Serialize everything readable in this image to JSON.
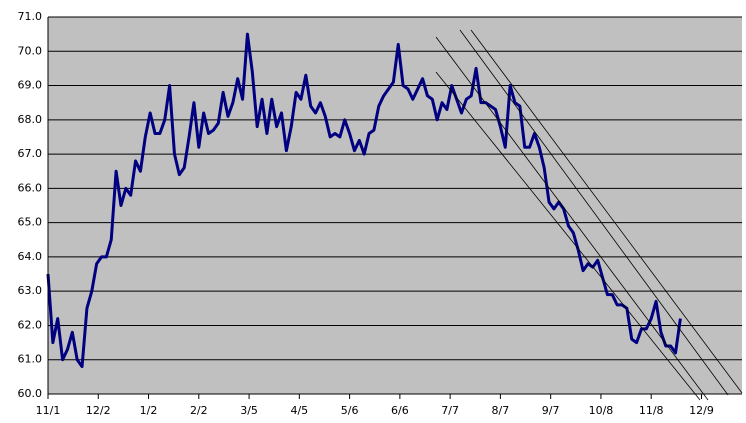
{
  "chart_data": {
    "type": "line",
    "x": [
      0,
      3,
      6,
      9,
      12,
      15,
      18,
      21,
      24,
      27,
      30,
      33,
      36,
      39,
      42,
      45,
      48,
      51,
      54,
      57,
      60,
      63,
      66,
      69,
      72,
      75,
      78,
      81,
      84,
      87,
      90,
      93,
      96,
      99,
      102,
      105,
      108,
      111,
      114,
      117,
      120,
      123,
      126,
      129,
      132,
      135,
      138,
      141,
      144,
      147,
      150,
      153,
      156,
      159,
      162,
      165,
      168,
      171,
      174,
      177,
      180,
      183,
      186,
      189,
      192,
      195,
      198,
      201,
      204,
      207,
      210,
      213,
      216,
      219,
      222,
      225,
      228,
      231,
      234,
      237,
      240,
      243,
      246,
      249,
      252,
      255,
      258,
      261,
      264,
      267,
      270,
      273,
      276,
      279,
      282,
      285,
      288,
      291,
      294,
      297,
      300,
      303,
      306,
      309,
      312,
      315,
      318,
      321,
      324,
      327,
      330,
      333,
      336,
      339,
      342,
      345,
      348,
      351,
      354,
      357,
      360,
      363,
      366,
      369,
      372,
      375,
      378,
      381,
      384,
      387,
      390
    ],
    "series": [
      {
        "color": "#000080",
        "values": [
          63.5,
          61.5,
          62.2,
          61.0,
          61.3,
          61.8,
          61.0,
          60.8,
          62.5,
          63.0,
          63.8,
          64.0,
          64.0,
          64.5,
          66.5,
          65.5,
          66.0,
          65.8,
          66.8,
          66.5,
          67.5,
          68.2,
          67.6,
          67.6,
          68.0,
          69.0,
          67.0,
          66.4,
          66.6,
          67.5,
          68.5,
          67.2,
          68.2,
          67.6,
          67.7,
          67.9,
          68.8,
          68.1,
          68.5,
          69.2,
          68.6,
          70.5,
          69.4,
          67.8,
          68.6,
          67.6,
          68.6,
          67.8,
          68.2,
          67.1,
          67.8,
          68.8,
          68.6,
          69.3,
          68.4,
          68.2,
          68.5,
          68.1,
          67.5,
          67.6,
          67.5,
          68.0,
          67.6,
          67.1,
          67.4,
          67.0,
          67.6,
          67.7,
          68.4,
          68.7,
          68.9,
          69.1,
          70.2,
          69.0,
          68.9,
          68.6,
          68.9,
          69.2,
          68.7,
          68.6,
          68.0,
          68.5,
          68.3,
          69.0,
          68.6,
          68.2,
          68.6,
          68.7,
          69.5,
          68.5,
          68.5,
          68.4,
          68.3,
          67.8,
          67.2,
          69.0,
          68.5,
          68.4,
          67.2,
          67.2,
          67.6,
          67.2,
          66.6,
          65.6,
          65.4,
          65.6,
          65.4,
          64.9,
          64.7,
          64.2,
          63.6,
          63.8,
          63.7,
          63.9,
          63.4,
          62.9,
          62.9,
          62.6,
          62.6,
          62.5,
          61.6,
          61.5,
          61.9,
          61.9,
          62.2,
          62.7,
          61.8,
          61.4,
          61.4,
          61.2,
          62.2
        ]
      }
    ],
    "xlim": [
      0,
      428
    ],
    "xticks": [
      {
        "value": 0,
        "label": "11/1"
      },
      {
        "value": 31,
        "label": "12/2"
      },
      {
        "value": 62,
        "label": "1/2"
      },
      {
        "value": 93,
        "label": "2/2"
      },
      {
        "value": 124,
        "label": "3/5"
      },
      {
        "value": 155,
        "label": "4/5"
      },
      {
        "value": 186,
        "label": "5/6"
      },
      {
        "value": 217,
        "label": "6/6"
      },
      {
        "value": 248,
        "label": "7/7"
      },
      {
        "value": 279,
        "label": "8/7"
      },
      {
        "value": 310,
        "label": "9/7"
      },
      {
        "value": 341,
        "label": "10/8"
      },
      {
        "value": 372,
        "label": "11/8"
      },
      {
        "value": 403,
        "label": "12/9"
      }
    ],
    "ylim": [
      60,
      71
    ],
    "yticks": [
      {
        "value": 60,
        "label": "60.0"
      },
      {
        "value": 61,
        "label": "61.0"
      },
      {
        "value": 62,
        "label": "62.0"
      },
      {
        "value": 63,
        "label": "63.0"
      },
      {
        "value": 64,
        "label": "64.0"
      },
      {
        "value": 65,
        "label": "65.0"
      },
      {
        "value": 66,
        "label": "66.0"
      },
      {
        "value": 67,
        "label": "67.0"
      },
      {
        "value": 68,
        "label": "68.0"
      },
      {
        "value": 69,
        "label": "69.0"
      },
      {
        "value": 70,
        "label": "70.0"
      },
      {
        "value": 71,
        "label": "71.0"
      }
    ],
    "grid": true,
    "background": "#c0c0c0"
  }
}
